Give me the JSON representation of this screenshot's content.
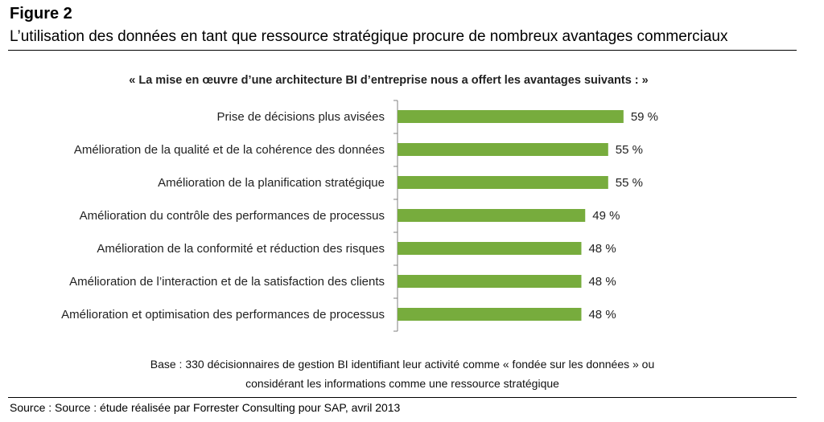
{
  "figure_label": "Figure 2",
  "figure_title": "L’utilisation des données en tant que ressource stratégique procure de nombreux avantages commerciaux",
  "base_note": {
    "line1": "Base : 330 décisionnaires de gestion BI identifiant leur activité comme « fondée sur les données » ou",
    "line2": "considérant les informations comme une ressource stratégique"
  },
  "source": "Source : Source : étude réalisée par Forrester Consulting pour SAP, avril 2013",
  "colors": {
    "bar": "#77AC3D",
    "axis": "#808080",
    "text": "#222222"
  },
  "chart_data": {
    "type": "bar",
    "orientation": "horizontal",
    "title": "« La mise en œuvre d’une architecture BI d’entreprise nous a offert les avantages suivants : »",
    "categories": [
      "Prise de décisions plus avisées",
      "Amélioration de la qualité et de la cohérence des données",
      "Amélioration de la planification stratégique",
      "Amélioration du contrôle des performances de processus",
      "Amélioration de la conformité et réduction des risques",
      "Amélioration de l’interaction et de la satisfaction des clients",
      "Amélioration et optimisation des performances de processus"
    ],
    "values": [
      59,
      55,
      55,
      49,
      48,
      48,
      48
    ],
    "value_labels": [
      "59 %",
      "55 %",
      "55 %",
      "49 %",
      "48 %",
      "48 %",
      "48 %"
    ],
    "unit": "%",
    "xlim": [
      0,
      100
    ],
    "grid": false,
    "legend": "none"
  }
}
